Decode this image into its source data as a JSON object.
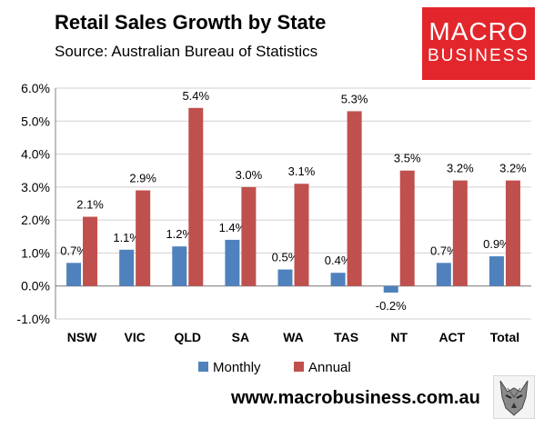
{
  "header": {
    "title": "Retail Sales Growth by State",
    "subtitle": "Source: Australian Bureau of Statistics"
  },
  "logo": {
    "line1": "MACRO",
    "line2": "BUSINESS",
    "bg_color": "#e3262b"
  },
  "footer": {
    "url": "www.macrobusiness.com.au",
    "mascot_icon": "wolf-icon"
  },
  "chart_data": {
    "type": "bar",
    "categories": [
      "NSW",
      "VIC",
      "QLD",
      "SA",
      "WA",
      "TAS",
      "NT",
      "ACT",
      "Total"
    ],
    "series": [
      {
        "name": "Monthly",
        "color": "#4f81bd",
        "values": [
          0.7,
          1.1,
          1.2,
          1.4,
          0.5,
          0.4,
          -0.2,
          0.7,
          0.9
        ],
        "labels": [
          "0.7%",
          "1.1%",
          "1.2%",
          "1.4%",
          "0.5%",
          "0.4%",
          "-0.2%",
          "0.7%",
          "0.9%"
        ]
      },
      {
        "name": "Annual",
        "color": "#c0504d",
        "values": [
          2.1,
          2.9,
          5.4,
          3.0,
          3.1,
          5.3,
          3.5,
          3.2,
          3.2
        ],
        "labels": [
          "2.1%",
          "2.9%",
          "5.4%",
          "3.0%",
          "3.1%",
          "5.3%",
          "3.5%",
          "3.2%",
          "3.2%"
        ]
      }
    ],
    "ylim": [
      -1.0,
      6.0
    ],
    "yticks": [
      -1.0,
      0.0,
      1.0,
      2.0,
      3.0,
      4.0,
      5.0,
      6.0
    ],
    "ytick_labels": [
      "-1.0%",
      "0.0%",
      "1.0%",
      "2.0%",
      "3.0%",
      "4.0%",
      "5.0%",
      "6.0%"
    ],
    "grid": true,
    "legend_position": "bottom"
  }
}
